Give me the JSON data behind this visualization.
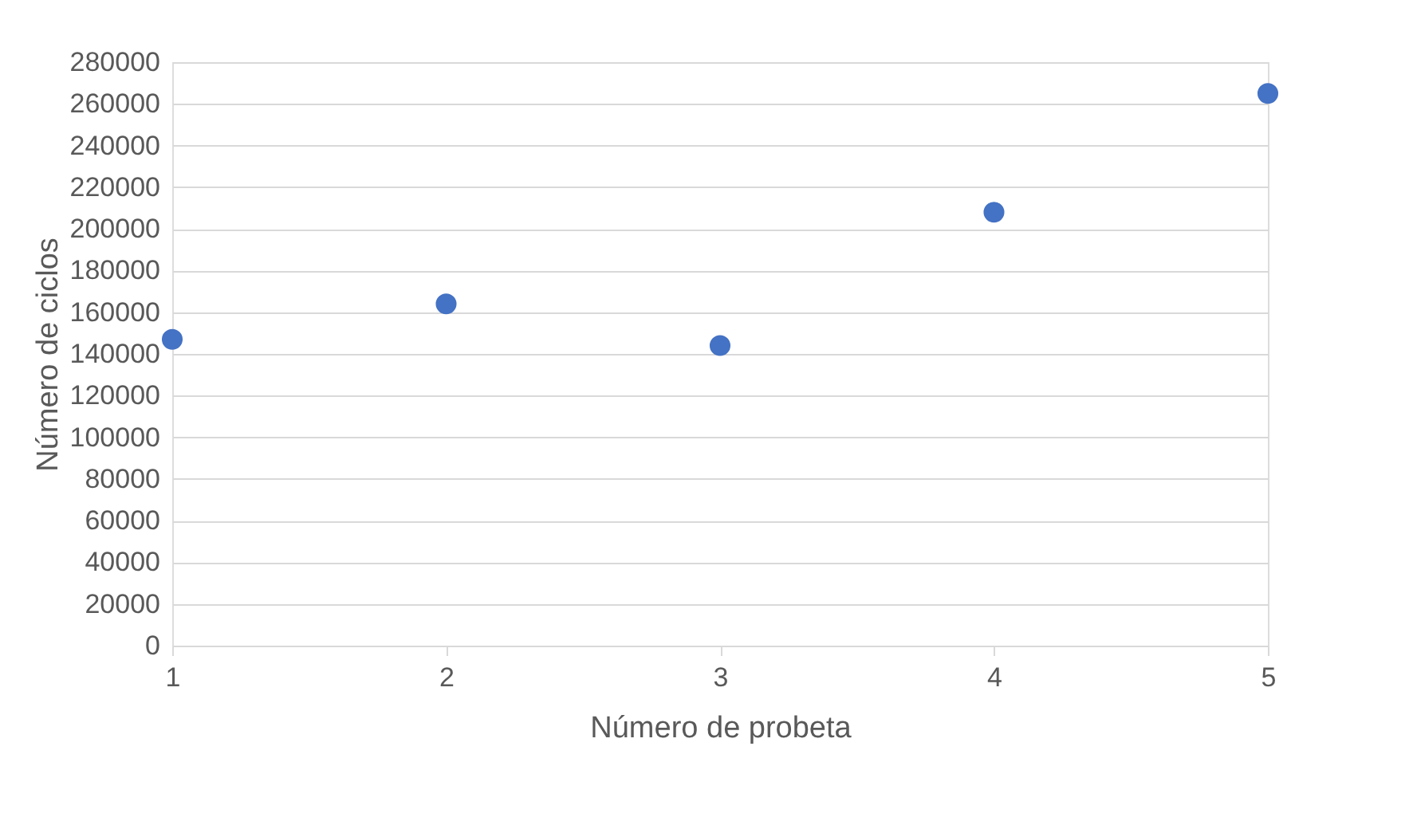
{
  "chart_data": {
    "type": "scatter",
    "xlabel": "Número de probeta",
    "ylabel": "Número de ciclos",
    "x": [
      1,
      2,
      3,
      4,
      5
    ],
    "series": [
      {
        "color": "#4472c4",
        "values": [
          147000,
          164000,
          144000,
          208000,
          265000
        ]
      }
    ],
    "xlim": [
      1,
      5
    ],
    "xticks": [
      1,
      2,
      3,
      4,
      5
    ],
    "ylim": [
      0,
      280000
    ],
    "yticks": [
      0,
      20000,
      40000,
      60000,
      80000,
      100000,
      120000,
      140000,
      160000,
      180000,
      200000,
      220000,
      240000,
      260000,
      280000
    ],
    "grid": "y",
    "marker": "circle",
    "legend": false
  }
}
